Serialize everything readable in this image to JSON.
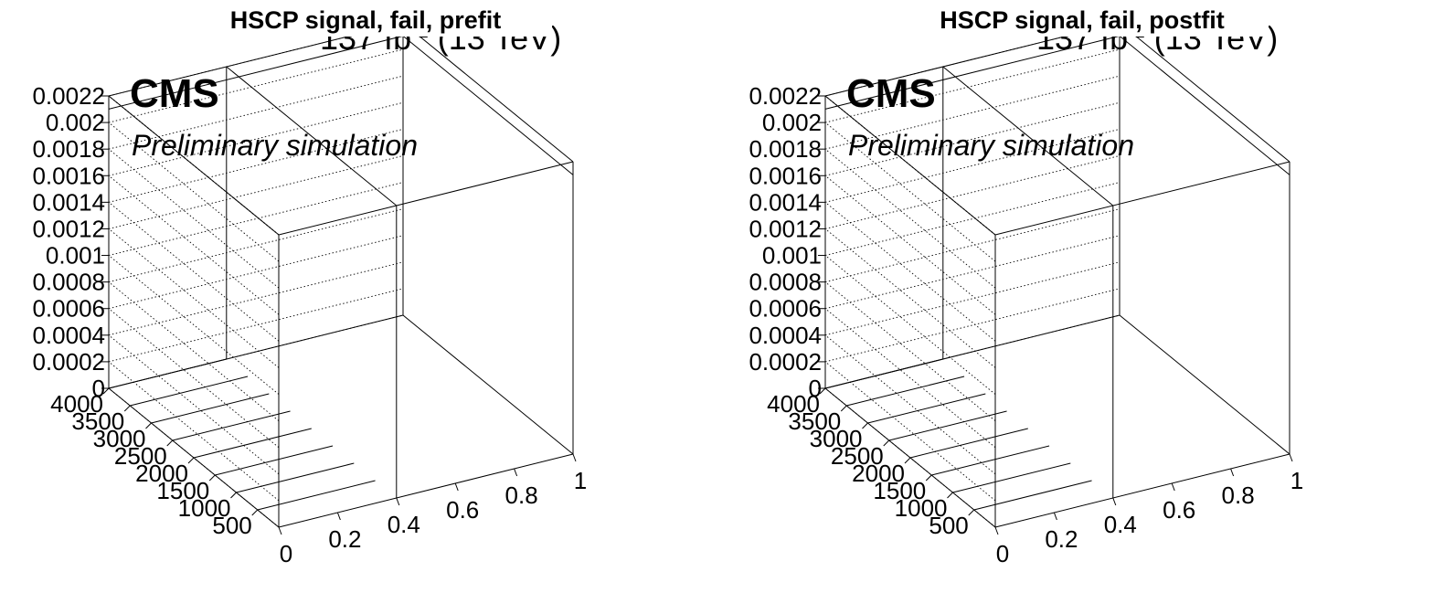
{
  "chart_data": [
    {
      "type": "lego3d",
      "title": "HSCP signal, fail, prefit",
      "lumi": "137 fb",
      "lumi_sup": "-1",
      "energy": "(13 TeV)",
      "cms_label": "CMS",
      "extra_label": "Preliminary simulation",
      "x_ticks": [
        "0",
        "0.2",
        "0.4",
        "0.6",
        "0.8",
        "1"
      ],
      "y_ticks": [
        "500",
        "1000",
        "1500",
        "2000",
        "2500",
        "3000",
        "3500",
        "4000"
      ],
      "z_ticks": [
        "0",
        "0.0002",
        "0.0004",
        "0.0006",
        "0.0008",
        "0.001",
        "0.0012",
        "0.0014",
        "0.0016",
        "0.0018",
        "0.002",
        "0.0022"
      ],
      "xlim": [
        0,
        1
      ],
      "ylim": [
        0,
        4000
      ],
      "zlim": [
        0,
        0.0022
      ],
      "x_bins": [
        [
          0,
          0.4
        ],
        [
          0.4,
          1
        ]
      ],
      "y_bins_start": 0,
      "grid": true,
      "values": []
    },
    {
      "type": "lego3d",
      "title": "HSCP signal, fail, postfit",
      "lumi": "137 fb",
      "lumi_sup": "-1",
      "energy": "(13 TeV)",
      "cms_label": "CMS",
      "extra_label": "Preliminary simulation",
      "x_ticks": [
        "0",
        "0.2",
        "0.4",
        "0.6",
        "0.8",
        "1"
      ],
      "y_ticks": [
        "500",
        "1000",
        "1500",
        "2000",
        "2500",
        "3000",
        "3500",
        "4000"
      ],
      "z_ticks": [
        "0",
        "0.0002",
        "0.0004",
        "0.0006",
        "0.0008",
        "0.001",
        "0.0012",
        "0.0014",
        "0.0016",
        "0.0018",
        "0.002",
        "0.0022"
      ],
      "xlim": [
        0,
        1
      ],
      "ylim": [
        0,
        4000
      ],
      "zlim": [
        0,
        0.0022
      ],
      "x_bins": [
        [
          0,
          0.4
        ],
        [
          0.4,
          1
        ]
      ],
      "y_bins_start": 0,
      "grid": true,
      "values": []
    }
  ]
}
